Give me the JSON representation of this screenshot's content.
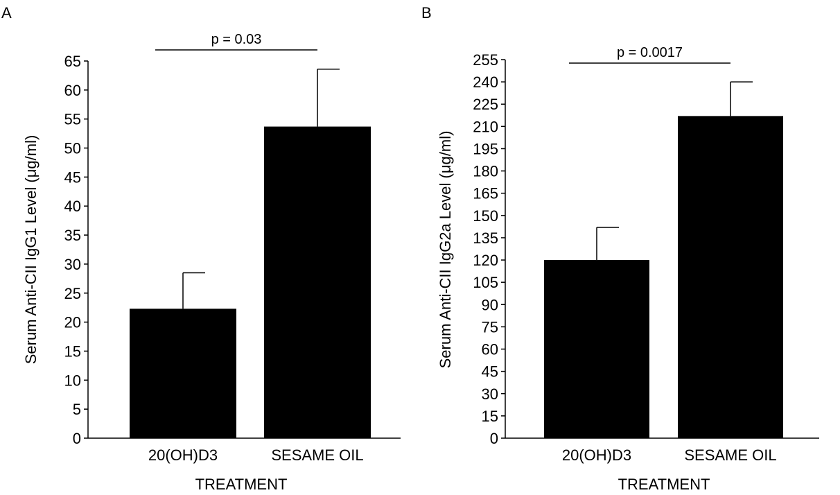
{
  "chart_data": [
    {
      "type": "bar",
      "panel_label": "A",
      "categories": [
        "20(OH)D3",
        "SESAME OIL"
      ],
      "values": [
        22.3,
        53.7
      ],
      "error_upper": [
        28.5,
        63.6
      ],
      "xlabel": "TREATMENT",
      "ylabel": "Serum Anti-CII IgG1 Level (μg/ml)",
      "ylim": [
        0,
        65
      ],
      "yticks": [
        0,
        5,
        10,
        15,
        20,
        25,
        30,
        35,
        40,
        45,
        50,
        55,
        60,
        65
      ],
      "significance": {
        "label": "p = 0.03",
        "from": 0,
        "to": 1
      },
      "bar_color": "#000000",
      "grid": false,
      "legend": "none"
    },
    {
      "type": "bar",
      "panel_label": "B",
      "categories": [
        "20(OH)D3",
        "SESAME OIL"
      ],
      "values": [
        120,
        217
      ],
      "error_upper": [
        142,
        240
      ],
      "xlabel": "TREATMENT",
      "ylabel": "Serum Anti-CII IgG2a Level (μg/ml)",
      "ylim": [
        0,
        255
      ],
      "yticks": [
        0,
        15,
        30,
        45,
        60,
        75,
        90,
        105,
        120,
        135,
        150,
        165,
        180,
        195,
        210,
        225,
        240,
        255
      ],
      "significance": {
        "label": "p = 0.0017",
        "from": 0,
        "to": 1
      },
      "bar_color": "#000000",
      "grid": false,
      "legend": "none"
    }
  ]
}
